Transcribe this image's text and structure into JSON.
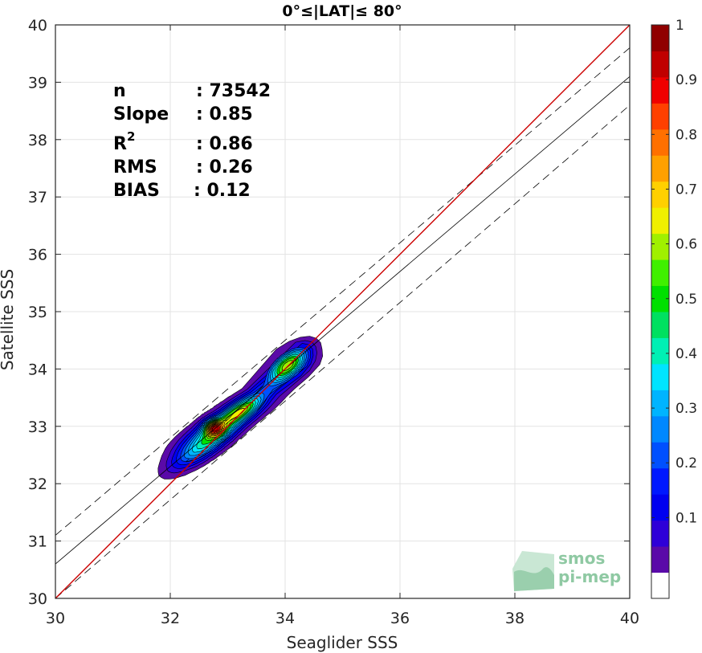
{
  "chart_data": {
    "type": "contour",
    "title": "0°≤|LAT|≤ 80°",
    "xlabel": "Seaglider SSS",
    "ylabel": "Satellite SSS",
    "xlim": [
      30,
      40
    ],
    "ylim": [
      30,
      40
    ],
    "xticks": [
      "30",
      "32",
      "34",
      "36",
      "38",
      "40"
    ],
    "yticks": [
      "30",
      "31",
      "32",
      "33",
      "34",
      "35",
      "36",
      "37",
      "38",
      "39",
      "40"
    ],
    "grid": true,
    "stats": {
      "n_label": "n",
      "n_value": ": 73542",
      "slope_label": "Slope",
      "slope_value": ": 0.85",
      "r2_label": "R",
      "r2_sup": "2",
      "r2_value": ": 0.86",
      "rms_label": "RMS",
      "rms_value": ": 0.26",
      "bias_label": "BIAS",
      "bias_value": ": 0.12"
    },
    "lines": {
      "identity": {
        "x": [
          30,
          40
        ],
        "y": [
          30,
          40
        ],
        "color": "#cc0000"
      },
      "fit": {
        "x": [
          30,
          40
        ],
        "y": [
          30.6,
          39.1
        ],
        "color": "#000000"
      },
      "fit_plus": {
        "x": [
          30,
          40
        ],
        "y": [
          31.1,
          39.6
        ],
        "color": "#000000",
        "style": "dashed"
      },
      "fit_minus": {
        "x": [
          30,
          40
        ],
        "y": [
          30.0,
          38.6
        ],
        "color": "#000000",
        "style": "dashed"
      }
    },
    "density_peaks": [
      {
        "x": 32.75,
        "y": 32.97,
        "value": 1.0
      },
      {
        "x": 33.25,
        "y": 33.3,
        "value": 0.8
      },
      {
        "x": 34.05,
        "y": 34.08,
        "value": 0.75
      }
    ],
    "contour_levels": [
      0.05,
      0.1,
      0.15,
      0.2,
      0.25,
      0.3,
      0.35,
      0.4,
      0.45,
      0.5,
      0.55,
      0.6,
      0.65,
      0.7,
      0.75,
      0.8,
      0.85,
      0.9,
      0.95
    ],
    "colorbar": {
      "ticks": [
        "0.1",
        "0.2",
        "0.3",
        "0.4",
        "0.5",
        "0.6",
        "0.7",
        "0.8",
        "0.9",
        "1"
      ],
      "tick_values": [
        0.1,
        0.2,
        0.3,
        0.4,
        0.5,
        0.6,
        0.7,
        0.8,
        0.9,
        1.0
      ],
      "range": [
        0.0,
        1.0
      ],
      "colors": [
        "#ffffff",
        "#5a0aa8",
        "#2e00d8",
        "#0000f0",
        "#0018ff",
        "#0050ff",
        "#0088ff",
        "#00b4ff",
        "#00e4ff",
        "#00f0b4",
        "#00e060",
        "#00e000",
        "#40f000",
        "#a0f000",
        "#f0f000",
        "#ffd000",
        "#ffa000",
        "#ff7000",
        "#ff4000",
        "#f00000",
        "#c00000",
        "#900000"
      ]
    }
  },
  "logo": {
    "line1": "smos",
    "line2": "pi-mep"
  }
}
